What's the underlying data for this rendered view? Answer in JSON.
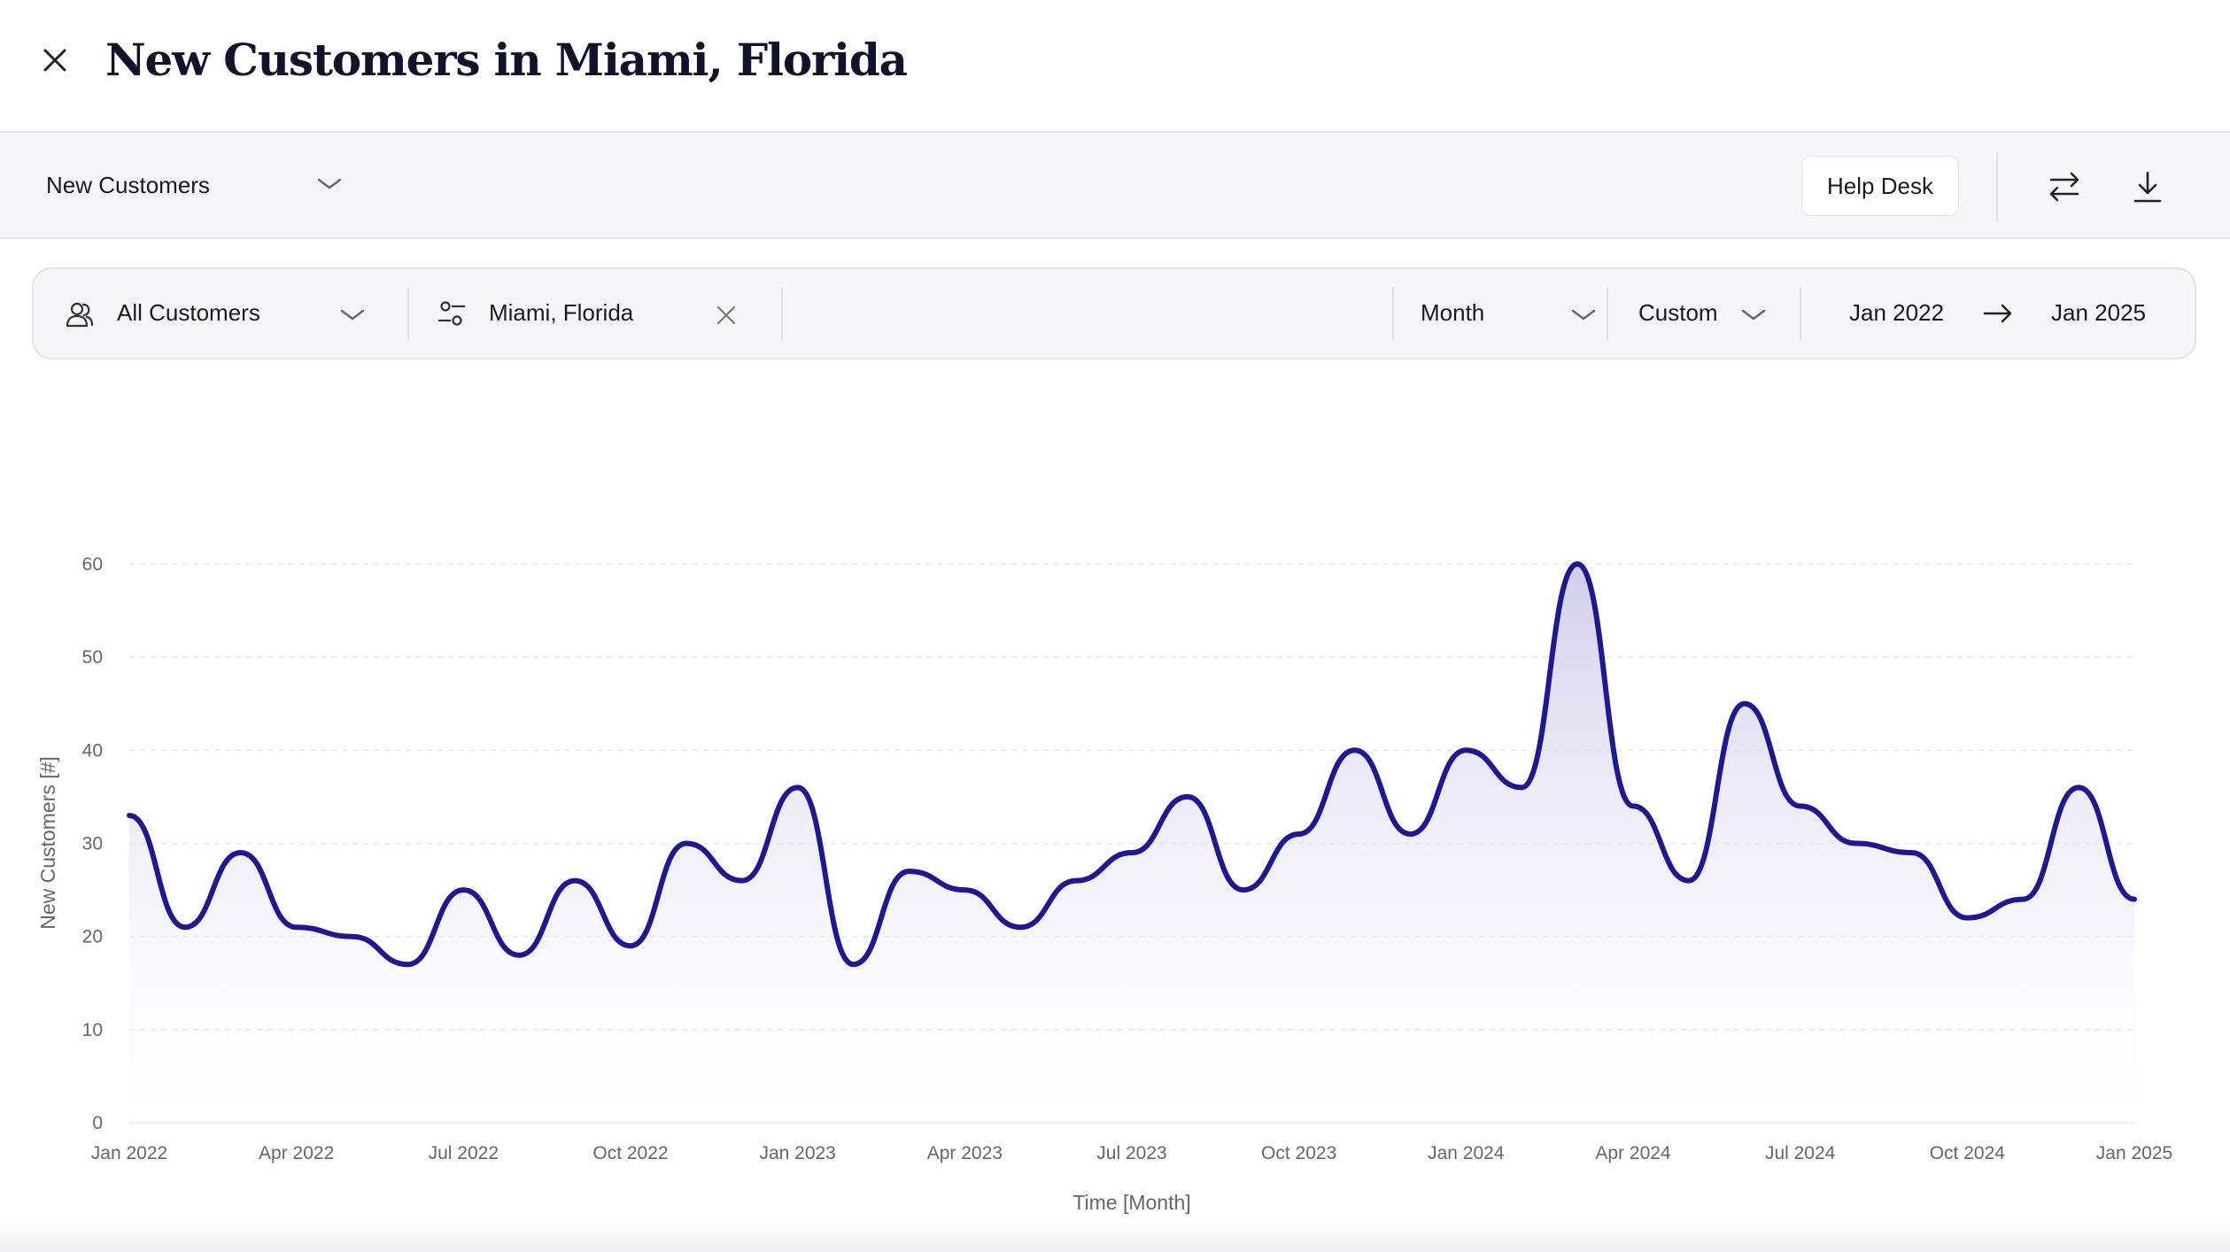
{
  "header": {
    "title": "New Customers in Miami, Florida"
  },
  "toolbar": {
    "metric_select": "New Customers",
    "help_desk_label": "Help Desk",
    "icons": [
      "close-icon",
      "chevron-down-icon",
      "swap-icon",
      "download-icon"
    ]
  },
  "filters": {
    "segment": "All Customers",
    "location": "Miami, Florida",
    "granularity": "Month",
    "range_mode": "Custom",
    "date_from": "Jan 2022",
    "date_to": "Jan 2025",
    "icons": [
      "users-icon",
      "sliders-icon",
      "clear-icon",
      "chevron-down-icon",
      "arrow-right-icon"
    ]
  },
  "colors": {
    "line": "#1f1891",
    "fill_top": "#cfcbea",
    "grid": "#e6e6ea"
  },
  "chart_data": {
    "type": "area",
    "xlabel": "Time [Month]",
    "ylabel": "New Customers [#]",
    "ylim": [
      0,
      60
    ],
    "yticks": [
      0,
      10,
      20,
      30,
      40,
      50,
      60
    ],
    "xticks": [
      "Jan 2022",
      "Apr 2022",
      "Jul 2022",
      "Oct 2022",
      "Jan 2023",
      "Apr 2023",
      "Jul 2023",
      "Oct 2023",
      "Jan 2024",
      "Apr 2024",
      "Jul 2024",
      "Oct 2024",
      "Jan 2025"
    ],
    "grid": true,
    "series": [
      {
        "name": "",
        "x": [
          "Jan 2022",
          "Feb 2022",
          "Mar 2022",
          "Apr 2022",
          "May 2022",
          "Jun 2022",
          "Jul 2022",
          "Aug 2022",
          "Sep 2022",
          "Oct 2022",
          "Nov 2022",
          "Dec 2022",
          "Jan 2023",
          "Feb 2023",
          "Mar 2023",
          "Apr 2023",
          "May 2023",
          "Jun 2023",
          "Jul 2023",
          "Aug 2023",
          "Sep 2023",
          "Oct 2023",
          "Nov 2023",
          "Dec 2023",
          "Jan 2024",
          "Feb 2024",
          "Mar 2024",
          "Apr 2024",
          "May 2024",
          "Jun 2024",
          "Jul 2024",
          "Aug 2024",
          "Sep 2024",
          "Oct 2024",
          "Nov 2024",
          "Dec 2024",
          "Jan 2025"
        ],
        "values": [
          33,
          21,
          29,
          21,
          20,
          17,
          25,
          18,
          26,
          19,
          30,
          26,
          36,
          17,
          27,
          25,
          21,
          26,
          29,
          35,
          25,
          31,
          40,
          31,
          40,
          36,
          60,
          34,
          26,
          45,
          34,
          30,
          29,
          22,
          24,
          36,
          24
        ]
      }
    ]
  }
}
